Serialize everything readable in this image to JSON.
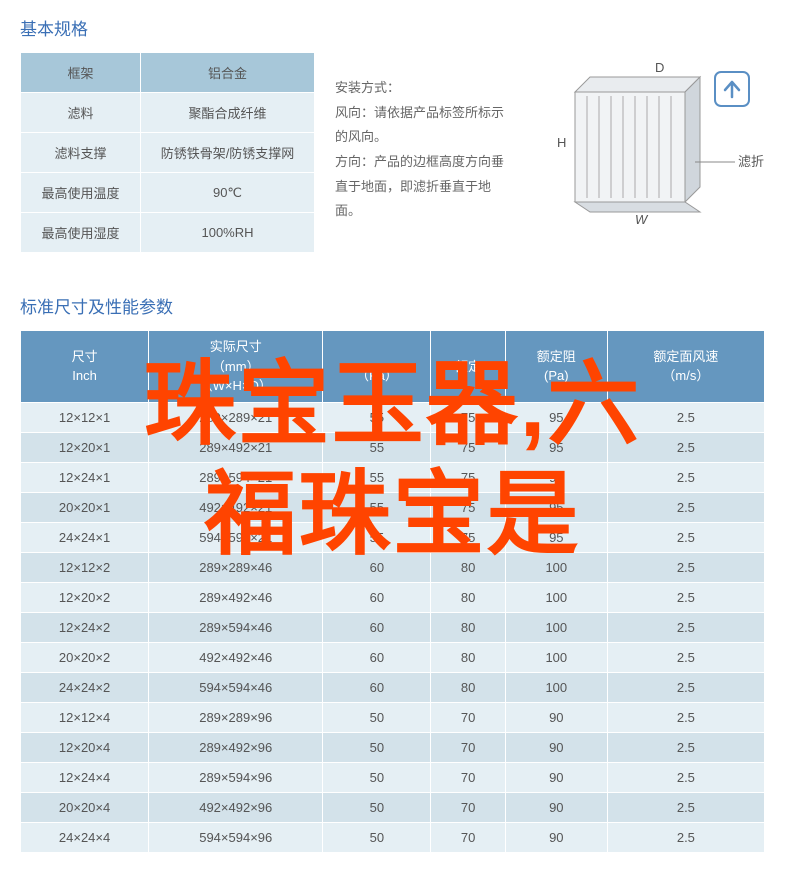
{
  "titles": {
    "basic_spec": "基本规格",
    "dim_perf": "标准尺寸及性能参数"
  },
  "spec_table": {
    "head_key": "框架",
    "head_val": "铝合金",
    "rows": [
      {
        "k": "滤料",
        "v": "聚酯合成纤维"
      },
      {
        "k": "滤料支撑",
        "v": "防锈铁骨架/防锈支撑网"
      },
      {
        "k": "最高使用温度",
        "v": "90℃"
      },
      {
        "k": "最高使用湿度",
        "v": "100%RH"
      }
    ]
  },
  "install": {
    "l1": "安装方式：",
    "l2": "风向：请依据产品标签所标示的风向。",
    "l3": "方向：产品的边框高度方向垂直于地面，即滤折垂直于地面。"
  },
  "diagram": {
    "label_D": "D",
    "label_H": "H",
    "label_W": "W",
    "label_fold": "滤折"
  },
  "dim_table": {
    "headers": {
      "c1a": "尺寸",
      "c1b": "Inch",
      "c2a": "实际尺寸",
      "c2b": "（mm）",
      "c2c": "（W×H×D）",
      "c3a": "",
      "c3b": "（Pa）",
      "c4a": "额定",
      "c4b": "",
      "c5a": "额定阻",
      "c5b": "(Pa)",
      "c6a": "额定面风速",
      "c6b": "（m/s）"
    },
    "rows": [
      [
        "12×12×1",
        "289×289×21",
        "55",
        "75",
        "95",
        "2.5"
      ],
      [
        "12×20×1",
        "289×492×21",
        "55",
        "75",
        "95",
        "2.5"
      ],
      [
        "12×24×1",
        "289×594×21",
        "55",
        "75",
        "95",
        "2.5"
      ],
      [
        "20×20×1",
        "492×492×21",
        "55",
        "75",
        "95",
        "2.5"
      ],
      [
        "24×24×1",
        "594×594×21",
        "55",
        "75",
        "95",
        "2.5"
      ],
      [
        "12×12×2",
        "289×289×46",
        "60",
        "80",
        "100",
        "2.5"
      ],
      [
        "12×20×2",
        "289×492×46",
        "60",
        "80",
        "100",
        "2.5"
      ],
      [
        "12×24×2",
        "289×594×46",
        "60",
        "80",
        "100",
        "2.5"
      ],
      [
        "20×20×2",
        "492×492×46",
        "60",
        "80",
        "100",
        "2.5"
      ],
      [
        "24×24×2",
        "594×594×46",
        "60",
        "80",
        "100",
        "2.5"
      ],
      [
        "12×12×4",
        "289×289×96",
        "50",
        "70",
        "90",
        "2.5"
      ],
      [
        "12×20×4",
        "289×492×96",
        "50",
        "70",
        "90",
        "2.5"
      ],
      [
        "12×24×4",
        "289×594×96",
        "50",
        "70",
        "90",
        "2.5"
      ],
      [
        "20×20×4",
        "492×492×96",
        "50",
        "70",
        "90",
        "2.5"
      ],
      [
        "24×24×4",
        "594×594×96",
        "50",
        "70",
        "90",
        "2.5"
      ]
    ]
  },
  "overlay": {
    "line1": "珠宝玉器,六",
    "line2": "福珠宝是"
  },
  "colors": {
    "title": "#3a6fb5",
    "th_bg": "#6597bf",
    "odd_bg": "#e5eff4",
    "even_bg": "#d3e2ea",
    "overlay": "#ff4400"
  }
}
